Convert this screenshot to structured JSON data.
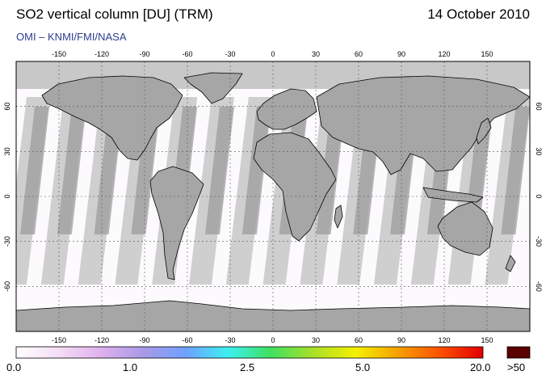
{
  "header": {
    "title": "SO2 vertical column [DU] (TRM)",
    "date": "14 October 2010",
    "credit": "OMI  –  KNMI/FMI/NASA"
  },
  "map": {
    "lon_ticks": [
      "-150",
      "-120",
      "-90",
      "-60",
      "-30",
      "0",
      "30",
      "60",
      "90",
      "120",
      "150"
    ],
    "lat_ticks": [
      "60",
      "30",
      "0",
      "-30",
      "-60"
    ],
    "colors": {
      "polar_nodata": "#c8c8c8",
      "swath_light": "#cfcfcf",
      "swath_dark": "#9c9c9c",
      "land": "#a6a6a6",
      "background": "#fcfafd"
    }
  },
  "legend": {
    "labels": [
      "0.0",
      "1.0",
      "2.5",
      "5.0",
      "20.0"
    ],
    "overflow_label": ">50",
    "overflow_color": "#5a0000",
    "gradient": [
      "#ffffff",
      "#f4ddf4",
      "#e0b0ee",
      "#a89ae6",
      "#6fa0ff",
      "#3cf0f0",
      "#40e060",
      "#a8e028",
      "#f5f000",
      "#f5a000",
      "#ff5000",
      "#e00000"
    ]
  }
}
